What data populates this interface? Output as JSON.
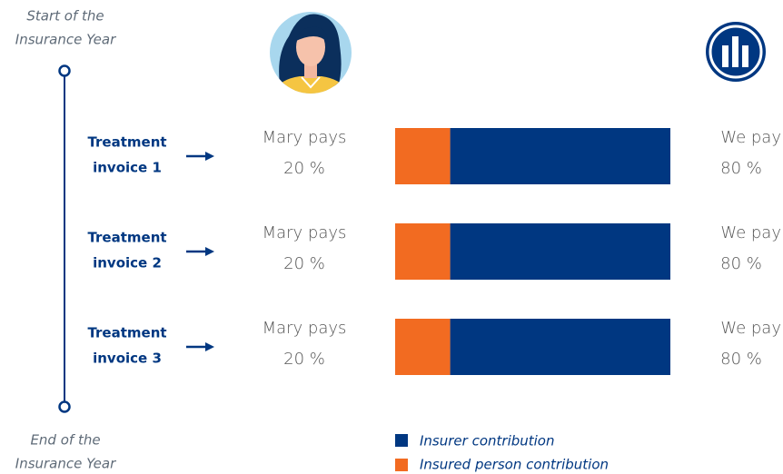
{
  "timeline": {
    "start": [
      "Start of the",
      "Insurance Year"
    ],
    "end": [
      "End of the",
      "Insurance Year"
    ]
  },
  "invoices": [
    {
      "label": [
        "Treatment",
        "invoice 1"
      ],
      "person_label": "Mary pays",
      "person_share": 20,
      "person_share_label": "20 %",
      "insurer_label": "We pay",
      "insurer_share": 80,
      "insurer_share_label": "80 %"
    },
    {
      "label": [
        "Treatment",
        "invoice 2"
      ],
      "person_label": "Mary pays",
      "person_share": 20,
      "person_share_label": "20 %",
      "insurer_label": "We pay",
      "insurer_share": 80,
      "insurer_share_label": "80 %"
    },
    {
      "label": [
        "Treatment",
        "invoice 3"
      ],
      "person_label": "Mary pays",
      "person_share": 20,
      "person_share_label": "20 %",
      "insurer_label": "We pay",
      "insurer_share": 80,
      "insurer_share_label": "80 %"
    }
  ],
  "legend": {
    "insurer": {
      "name": "Insurer contribution",
      "color": "#003781"
    },
    "insured": {
      "name": "Insured person contribution",
      "color": "#f26b21"
    }
  }
}
